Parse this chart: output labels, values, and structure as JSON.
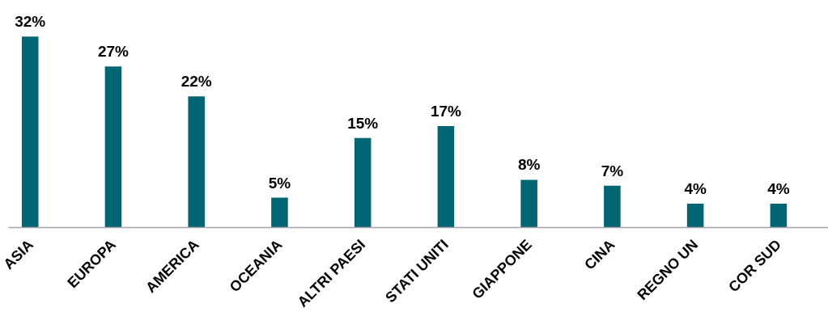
{
  "chart_data": {
    "type": "bar",
    "categories": [
      "ASIA",
      "EUROPA",
      "AMERICA",
      "OCEANIA",
      "ALTRI PAESI",
      "STATI UNITI",
      "GIAPPONE",
      "CINA",
      "REGNO UN",
      "COR SUD"
    ],
    "values": [
      32,
      27,
      22,
      5,
      15,
      17,
      8,
      7,
      4,
      4
    ],
    "value_labels": [
      "32%",
      "27%",
      "22%",
      "5%",
      "15%",
      "17%",
      "8%",
      "7%",
      "4%",
      "4%"
    ],
    "color": "#006674",
    "grid": false
  }
}
